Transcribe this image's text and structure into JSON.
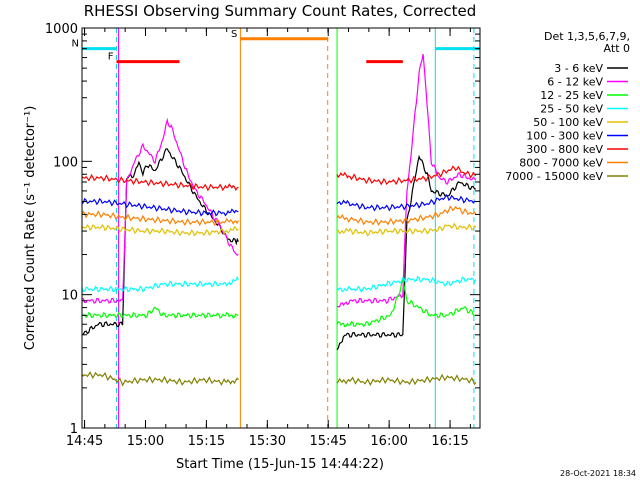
{
  "chart_data": {
    "type": "line",
    "title": "RHESSI Observing Summary Count Rates, Corrected",
    "xlabel": "Start Time (15-Jun-15 14:44:22)",
    "ylabel": "Corrected Count Rate (s⁻¹ detector⁻¹)",
    "yscale": "log",
    "ylim": [
      1,
      1000
    ],
    "xlim_minutes": [
      0,
      98
    ],
    "x_ticks": [
      {
        "label": "14:45",
        "m": 0.63
      },
      {
        "label": "15:00",
        "m": 15.63
      },
      {
        "label": "15:15",
        "m": 30.63
      },
      {
        "label": "15:30",
        "m": 45.63
      },
      {
        "label": "15:45",
        "m": 60.63
      },
      {
        "label": "16:00",
        "m": 75.63
      },
      {
        "label": "16:15",
        "m": 90.63
      }
    ],
    "y_ticks": [
      {
        "label": "1",
        "v": 1
      },
      {
        "label": "10",
        "v": 10
      },
      {
        "label": "100",
        "v": 100
      },
      {
        "label": "1000",
        "v": 1000
      }
    ],
    "legend": {
      "placement": "top-right",
      "header": [
        "Det 1,3,5,6,7,9,",
        "Att 0"
      ]
    },
    "segments": [
      [
        0,
        38.5
      ],
      [
        62.8,
        97
      ]
    ],
    "series": [
      {
        "name": "3 - 6 keV",
        "color": "#000000",
        "points": [
          [
            0,
            5
          ],
          [
            4,
            6
          ],
          [
            10,
            6
          ],
          [
            11,
            75
          ],
          [
            13,
            80
          ],
          [
            14,
            100
          ],
          [
            15,
            80
          ],
          [
            16,
            95
          ],
          [
            18,
            85
          ],
          [
            20,
            110
          ],
          [
            21,
            125
          ],
          [
            22,
            110
          ],
          [
            24,
            90
          ],
          [
            26,
            70
          ],
          [
            28,
            55
          ],
          [
            30,
            45
          ],
          [
            32,
            38
          ],
          [
            34,
            32
          ],
          [
            36,
            26
          ],
          [
            38,
            25
          ],
          [
            38.5,
            25
          ],
          [
            62.8,
            4
          ],
          [
            65,
            5
          ],
          [
            70,
            5
          ],
          [
            75,
            5
          ],
          [
            79,
            5
          ],
          [
            80,
            35
          ],
          [
            82,
            75
          ],
          [
            83,
            110
          ],
          [
            85,
            80
          ],
          [
            86,
            60
          ],
          [
            90,
            55
          ],
          [
            93,
            70
          ],
          [
            95,
            65
          ],
          [
            97,
            62
          ]
        ]
      },
      {
        "name": "6 - 12 keV",
        "color": "#ff00ff",
        "points": [
          [
            0,
            9
          ],
          [
            5,
            9
          ],
          [
            10,
            9
          ],
          [
            11,
            70
          ],
          [
            13,
            100
          ],
          [
            15,
            130
          ],
          [
            16,
            120
          ],
          [
            18,
            100
          ],
          [
            20,
            150
          ],
          [
            21,
            200
          ],
          [
            22,
            180
          ],
          [
            24,
            120
          ],
          [
            26,
            80
          ],
          [
            28,
            60
          ],
          [
            30,
            50
          ],
          [
            32,
            40
          ],
          [
            34,
            33
          ],
          [
            36,
            25
          ],
          [
            38,
            20
          ],
          [
            38.5,
            20
          ],
          [
            62.8,
            8
          ],
          [
            66,
            9
          ],
          [
            70,
            9
          ],
          [
            75,
            9
          ],
          [
            79,
            10
          ],
          [
            80,
            60
          ],
          [
            81,
            110
          ],
          [
            82,
            230
          ],
          [
            83,
            450
          ],
          [
            84,
            650
          ],
          [
            85,
            260
          ],
          [
            86,
            100
          ],
          [
            88,
            75
          ],
          [
            90,
            70
          ],
          [
            93,
            80
          ],
          [
            95,
            75
          ],
          [
            97,
            72
          ]
        ]
      },
      {
        "name": "12 - 25 keV",
        "color": "#00ff00",
        "points": [
          [
            0,
            7
          ],
          [
            5,
            7
          ],
          [
            10,
            7
          ],
          [
            14,
            7
          ],
          [
            16,
            7
          ],
          [
            18,
            8
          ],
          [
            20,
            7
          ],
          [
            24,
            7
          ],
          [
            30,
            7
          ],
          [
            34,
            7
          ],
          [
            38.5,
            7
          ],
          [
            62.8,
            6
          ],
          [
            66,
            6
          ],
          [
            70,
            6
          ],
          [
            76,
            7
          ],
          [
            78,
            10
          ],
          [
            79,
            13
          ],
          [
            80,
            9
          ],
          [
            83,
            8
          ],
          [
            86,
            7
          ],
          [
            90,
            7
          ],
          [
            94,
            8
          ],
          [
            97,
            7
          ]
        ]
      },
      {
        "name": "25 - 50 keV",
        "color": "#00ffff",
        "points": [
          [
            0,
            11
          ],
          [
            5,
            11
          ],
          [
            10,
            11
          ],
          [
            15,
            11
          ],
          [
            20,
            12
          ],
          [
            25,
            12
          ],
          [
            30,
            12
          ],
          [
            35,
            12
          ],
          [
            38.5,
            13
          ],
          [
            62.8,
            11
          ],
          [
            66,
            11
          ],
          [
            70,
            11
          ],
          [
            75,
            12
          ],
          [
            80,
            13
          ],
          [
            85,
            13
          ],
          [
            90,
            12
          ],
          [
            94,
            13
          ],
          [
            97,
            13
          ]
        ]
      },
      {
        "name": "50 - 100 keV",
        "color": "#e0c000",
        "points": [
          [
            0,
            32
          ],
          [
            5,
            32
          ],
          [
            10,
            31
          ],
          [
            15,
            30
          ],
          [
            20,
            30
          ],
          [
            25,
            29
          ],
          [
            30,
            29
          ],
          [
            35,
            30
          ],
          [
            38.5,
            31
          ],
          [
            62.8,
            30
          ],
          [
            66,
            30
          ],
          [
            70,
            29
          ],
          [
            75,
            30
          ],
          [
            80,
            30
          ],
          [
            85,
            30
          ],
          [
            88,
            31
          ],
          [
            90,
            33
          ],
          [
            93,
            32
          ],
          [
            97,
            32
          ]
        ]
      },
      {
        "name": "100 - 300 keV",
        "color": "#0000ff",
        "points": [
          [
            0,
            50
          ],
          [
            5,
            50
          ],
          [
            10,
            48
          ],
          [
            15,
            46
          ],
          [
            20,
            44
          ],
          [
            25,
            42
          ],
          [
            30,
            41
          ],
          [
            35,
            41
          ],
          [
            38.5,
            42
          ],
          [
            62.8,
            50
          ],
          [
            66,
            48
          ],
          [
            70,
            45
          ],
          [
            75,
            45
          ],
          [
            80,
            46
          ],
          [
            85,
            48
          ],
          [
            88,
            52
          ],
          [
            90,
            54
          ],
          [
            93,
            52
          ],
          [
            97,
            50
          ]
        ]
      },
      {
        "name": "300 - 800 keV",
        "color": "#ff0000",
        "points": [
          [
            0,
            75
          ],
          [
            5,
            75
          ],
          [
            10,
            72
          ],
          [
            15,
            70
          ],
          [
            20,
            68
          ],
          [
            25,
            66
          ],
          [
            30,
            64
          ],
          [
            35,
            64
          ],
          [
            38.5,
            64
          ],
          [
            62.8,
            80
          ],
          [
            66,
            77
          ],
          [
            70,
            72
          ],
          [
            75,
            70
          ],
          [
            80,
            72
          ],
          [
            85,
            75
          ],
          [
            88,
            80
          ],
          [
            90,
            85
          ],
          [
            92,
            90
          ],
          [
            94,
            82
          ],
          [
            97,
            78
          ]
        ]
      },
      {
        "name": "800 - 7000 keV",
        "color": "#ff8000",
        "points": [
          [
            0,
            40
          ],
          [
            5,
            40
          ],
          [
            10,
            38
          ],
          [
            15,
            37
          ],
          [
            20,
            36
          ],
          [
            25,
            35
          ],
          [
            30,
            35
          ],
          [
            35,
            35
          ],
          [
            38.5,
            36
          ],
          [
            62.8,
            38
          ],
          [
            66,
            37
          ],
          [
            70,
            35
          ],
          [
            75,
            35
          ],
          [
            80,
            36
          ],
          [
            85,
            38
          ],
          [
            88,
            40
          ],
          [
            90,
            43
          ],
          [
            92,
            45
          ],
          [
            94,
            42
          ],
          [
            97,
            40
          ]
        ]
      },
      {
        "name": "7000 - 15000 keV",
        "color": "#808000",
        "points": [
          [
            0,
            2.5
          ],
          [
            5,
            2.5
          ],
          [
            10,
            2.2
          ],
          [
            15,
            2.3
          ],
          [
            20,
            2.3
          ],
          [
            25,
            2.2
          ],
          [
            30,
            2.3
          ],
          [
            35,
            2.2
          ],
          [
            38.5,
            2.3
          ],
          [
            62.8,
            2.2
          ],
          [
            66,
            2.3
          ],
          [
            70,
            2.2
          ],
          [
            75,
            2.3
          ],
          [
            80,
            2.2
          ],
          [
            85,
            2.3
          ],
          [
            90,
            2.4
          ],
          [
            95,
            2.3
          ],
          [
            97,
            2.2
          ]
        ]
      }
    ],
    "annotations": [
      {
        "label": "N",
        "kind": "night",
        "color": "#00e0f0",
        "x_start": 0,
        "x_end": 8.5,
        "level": 700
      },
      {
        "label": "F",
        "kind": "flare",
        "color": "#ff0000",
        "x_start": 8.5,
        "x_end": 24,
        "level": 560
      },
      {
        "label": "S",
        "kind": "saa",
        "color": "#ff8000",
        "x_start": 39,
        "x_end": 60.5,
        "level": 830
      },
      {
        "label": "",
        "kind": "flare",
        "color": "#ff0000",
        "x_start": 70,
        "x_end": 79,
        "level": 560
      },
      {
        "label": "",
        "kind": "night",
        "color": "#00e0f0",
        "x_start": 87,
        "x_end": 98,
        "level": 700
      }
    ],
    "vlines": [
      {
        "m": 8.5,
        "color": "#00e0f0",
        "dash": true
      },
      {
        "m": 9.0,
        "color": "#ff00ff",
        "dash": false
      },
      {
        "m": 39.0,
        "color": "#ff8000",
        "dash": false
      },
      {
        "m": 60.5,
        "color": "#ff8000",
        "dash": true
      },
      {
        "m": 62.8,
        "color": "#00ff00",
        "dash": false
      },
      {
        "m": 87.0,
        "color": "#00e0f0",
        "dash": false
      },
      {
        "m": 96.5,
        "color": "#00e0f0",
        "dash": true
      }
    ]
  },
  "footer": {
    "timestamp": "28-Oct-2021 18:34"
  }
}
